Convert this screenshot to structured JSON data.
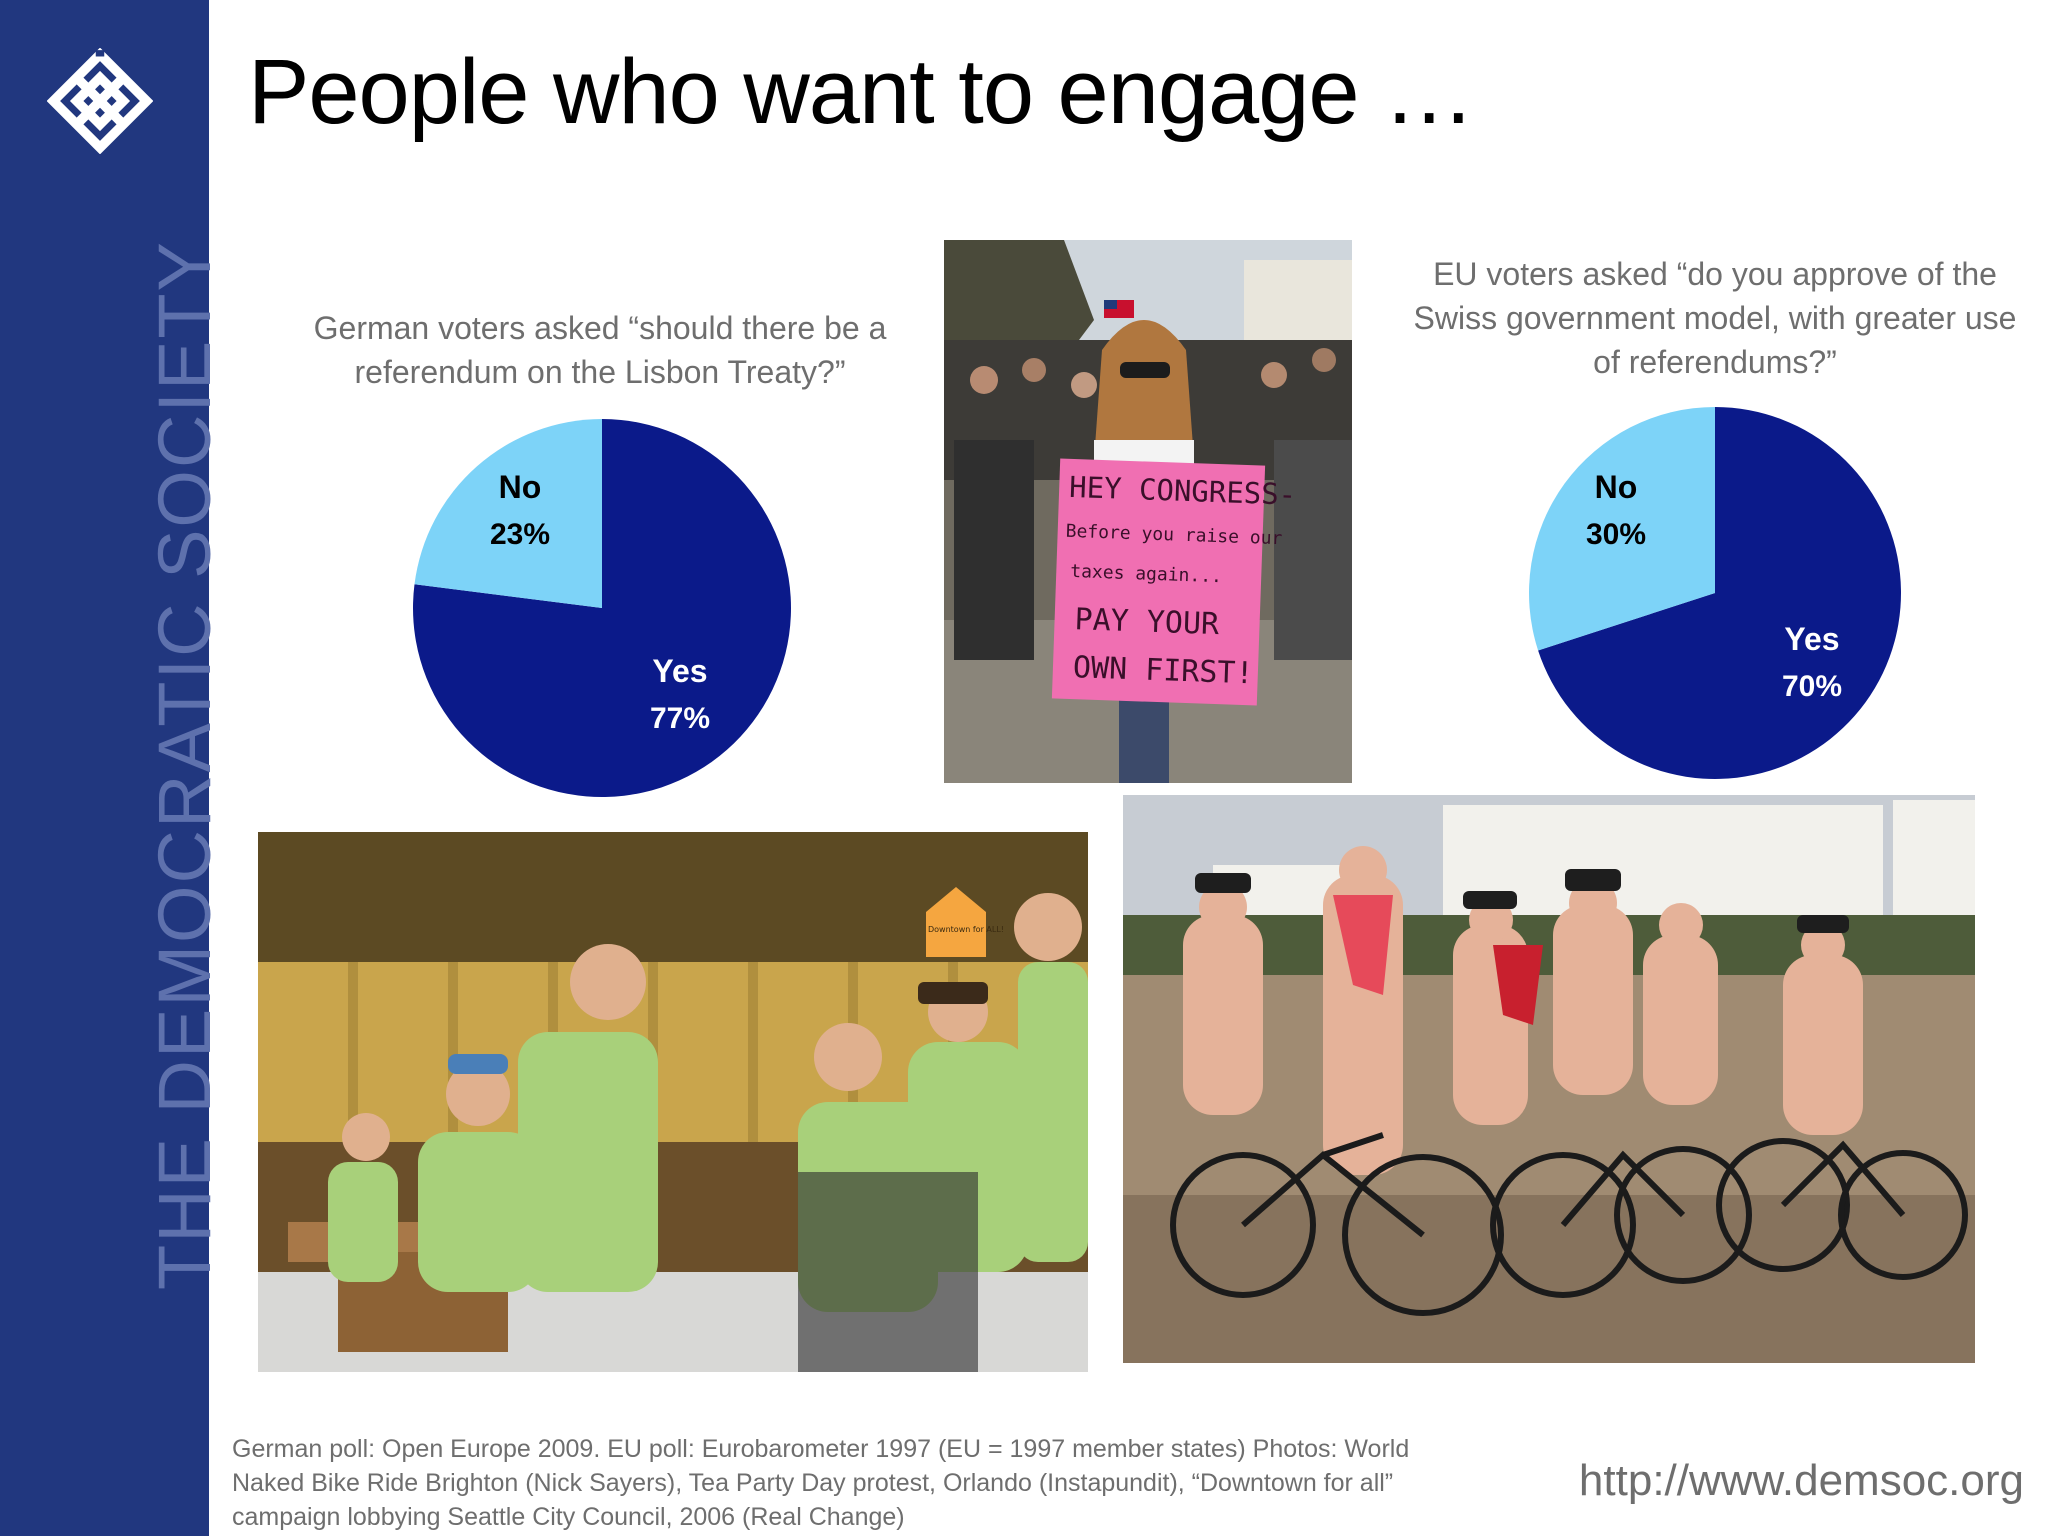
{
  "sidebar": {
    "brand_text": "THE DEMOCRATIC SOCIETY",
    "logo_icon": "knot-logo-icon",
    "background": "#21377f"
  },
  "title": "People who want to engage …",
  "charts": {
    "german": {
      "caption": "German voters asked “should there be a referendum on the Lisbon Treaty?”",
      "no_label": "No",
      "no_value": "23%",
      "yes_label": "Yes",
      "yes_value": "77%"
    },
    "eu": {
      "caption": "EU voters asked “do you approve of the Swiss government model, with greater use of referendums?”",
      "no_label": "No",
      "no_value": "30%",
      "yes_label": "Yes",
      "yes_value": "70%"
    }
  },
  "chart_data": [
    {
      "type": "pie",
      "title": "German voters asked “should there be a referendum on the Lisbon Treaty?”",
      "categories": [
        "Yes",
        "No"
      ],
      "values": [
        77,
        23
      ],
      "colors": [
        "#0b1a8a",
        "#7dd3f8"
      ]
    },
    {
      "type": "pie",
      "title": "EU voters asked “do you approve of the Swiss government model, with greater use of referendums?”",
      "categories": [
        "Yes",
        "No"
      ],
      "values": [
        70,
        30
      ],
      "colors": [
        "#0b1a8a",
        "#7dd3f8"
      ]
    }
  ],
  "photos": {
    "protest_sign_lines": [
      "HEY CONGRESS-",
      "Before you raise our",
      "taxes again...",
      "PAY YOUR",
      "OWN FIRST!"
    ],
    "council_sign": "Downtown for ALL!"
  },
  "footer": {
    "source_note": "German poll: Open Europe 2009. EU poll: Eurobarometer 1997 (EU = 1997 member states) Photos: World Naked Bike Ride Brighton (Nick Sayers), Tea Party Day protest, Orlando (Instapundit), “Downtown for all” campaign lobbying Seattle City Council, 2006 (Real Change)",
    "url": "http://www.demsoc.org"
  }
}
